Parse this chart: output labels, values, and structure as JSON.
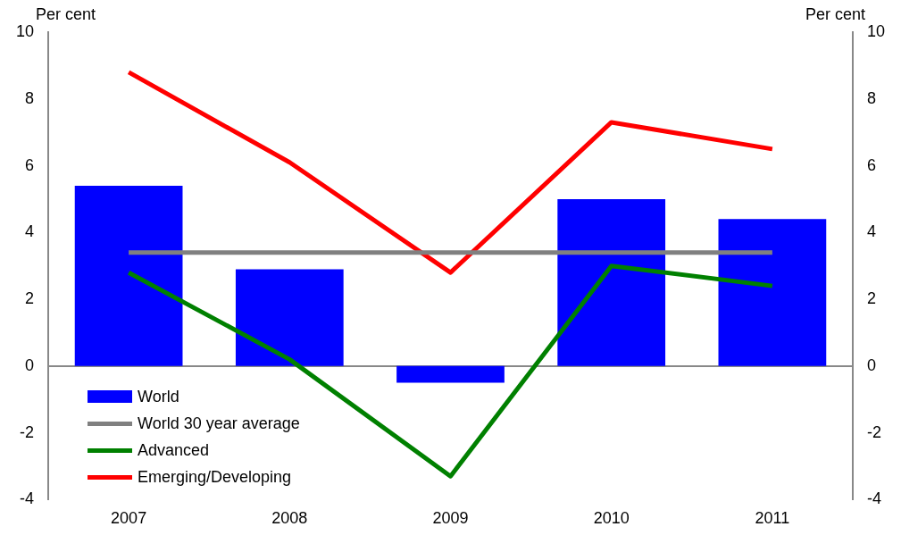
{
  "chart_data": {
    "type": "bar",
    "ylabel": "Per cent",
    "y2label": "Per cent",
    "categories": [
      "2007",
      "2008",
      "2009",
      "2010",
      "2011"
    ],
    "series": [
      {
        "name": "World",
        "color": "#0000ff",
        "values": [
          5.4,
          2.9,
          -0.5,
          5.0,
          4.4
        ]
      },
      {
        "name": "World 30 year average",
        "type": "line",
        "color": "#808080",
        "values": [
          3.4,
          3.4,
          3.4,
          3.4,
          3.4
        ]
      },
      {
        "name": "Advanced",
        "type": "line",
        "color": "#008000",
        "values": [
          2.8,
          0.2,
          -3.3,
          3.0,
          2.4
        ]
      },
      {
        "name": "Emerging/Developing",
        "type": "line",
        "color": "#ff0000",
        "values": [
          8.8,
          6.1,
          2.8,
          7.3,
          6.5
        ]
      }
    ],
    "ylim": [
      -4,
      10
    ],
    "yticks": [
      -4,
      -2,
      0,
      2,
      4,
      6,
      8,
      10
    ],
    "y2lim": [
      -4,
      10
    ],
    "y2ticks": [
      -4,
      -2,
      0,
      2,
      4,
      6,
      8,
      10
    ],
    "grid": false,
    "legend": "bottom left",
    "marker": "none",
    "line_style": "solid"
  }
}
